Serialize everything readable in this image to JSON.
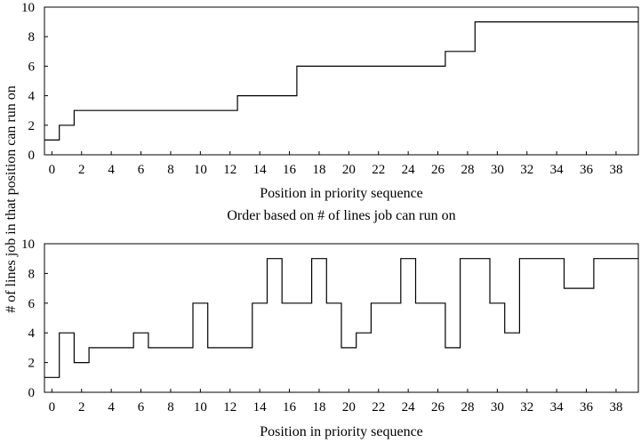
{
  "figure": {
    "shared_ylabel": "# of lines job in that position can run on"
  },
  "chart_data": [
    {
      "type": "line",
      "subtype": "step",
      "title": "",
      "xlabel": "Position in priority sequence",
      "ylabel": "",
      "xlim": [
        -0.5,
        39.5
      ],
      "ylim": [
        0,
        10
      ],
      "xticks": [
        0,
        2,
        4,
        6,
        8,
        10,
        12,
        14,
        16,
        18,
        20,
        22,
        24,
        26,
        28,
        30,
        32,
        34,
        36,
        38
      ],
      "yticks": [
        0,
        2,
        4,
        6,
        8,
        10
      ],
      "grid": false,
      "x": [
        0,
        1,
        2,
        3,
        4,
        5,
        6,
        7,
        8,
        9,
        10,
        11,
        12,
        13,
        14,
        15,
        16,
        17,
        18,
        19,
        20,
        21,
        22,
        23,
        24,
        25,
        26,
        27,
        28,
        29,
        30,
        31,
        32,
        33,
        34,
        35,
        36,
        37,
        38,
        39
      ],
      "values": [
        1,
        2,
        3,
        3,
        3,
        3,
        3,
        3,
        3,
        3,
        3,
        3,
        3,
        4,
        4,
        4,
        4,
        6,
        6,
        6,
        6,
        6,
        6,
        6,
        6,
        6,
        6,
        7,
        7,
        9,
        9,
        9,
        9,
        9,
        9,
        9,
        9,
        9,
        9,
        9
      ]
    },
    {
      "type": "line",
      "subtype": "step",
      "title": "Order based on # of lines job can run on",
      "xlabel": "Position in priority sequence",
      "ylabel": "",
      "xlim": [
        -0.5,
        39.5
      ],
      "ylim": [
        0,
        10
      ],
      "xticks": [
        0,
        2,
        4,
        6,
        8,
        10,
        12,
        14,
        16,
        18,
        20,
        22,
        24,
        26,
        28,
        30,
        32,
        34,
        36,
        38
      ],
      "yticks": [
        0,
        2,
        4,
        6,
        8,
        10
      ],
      "grid": false,
      "x": [
        0,
        1,
        2,
        3,
        4,
        5,
        6,
        7,
        8,
        9,
        10,
        11,
        12,
        13,
        14,
        15,
        16,
        17,
        18,
        19,
        20,
        21,
        22,
        23,
        24,
        25,
        26,
        27,
        28,
        29,
        30,
        31,
        32,
        33,
        34,
        35,
        36,
        37,
        38,
        39
      ],
      "values": [
        1,
        4,
        2,
        3,
        3,
        3,
        4,
        3,
        3,
        3,
        6,
        3,
        3,
        3,
        6,
        9,
        6,
        6,
        9,
        6,
        3,
        4,
        6,
        6,
        9,
        6,
        6,
        3,
        9,
        9,
        6,
        4,
        9,
        9,
        9,
        7,
        7,
        9,
        9,
        9
      ]
    }
  ]
}
